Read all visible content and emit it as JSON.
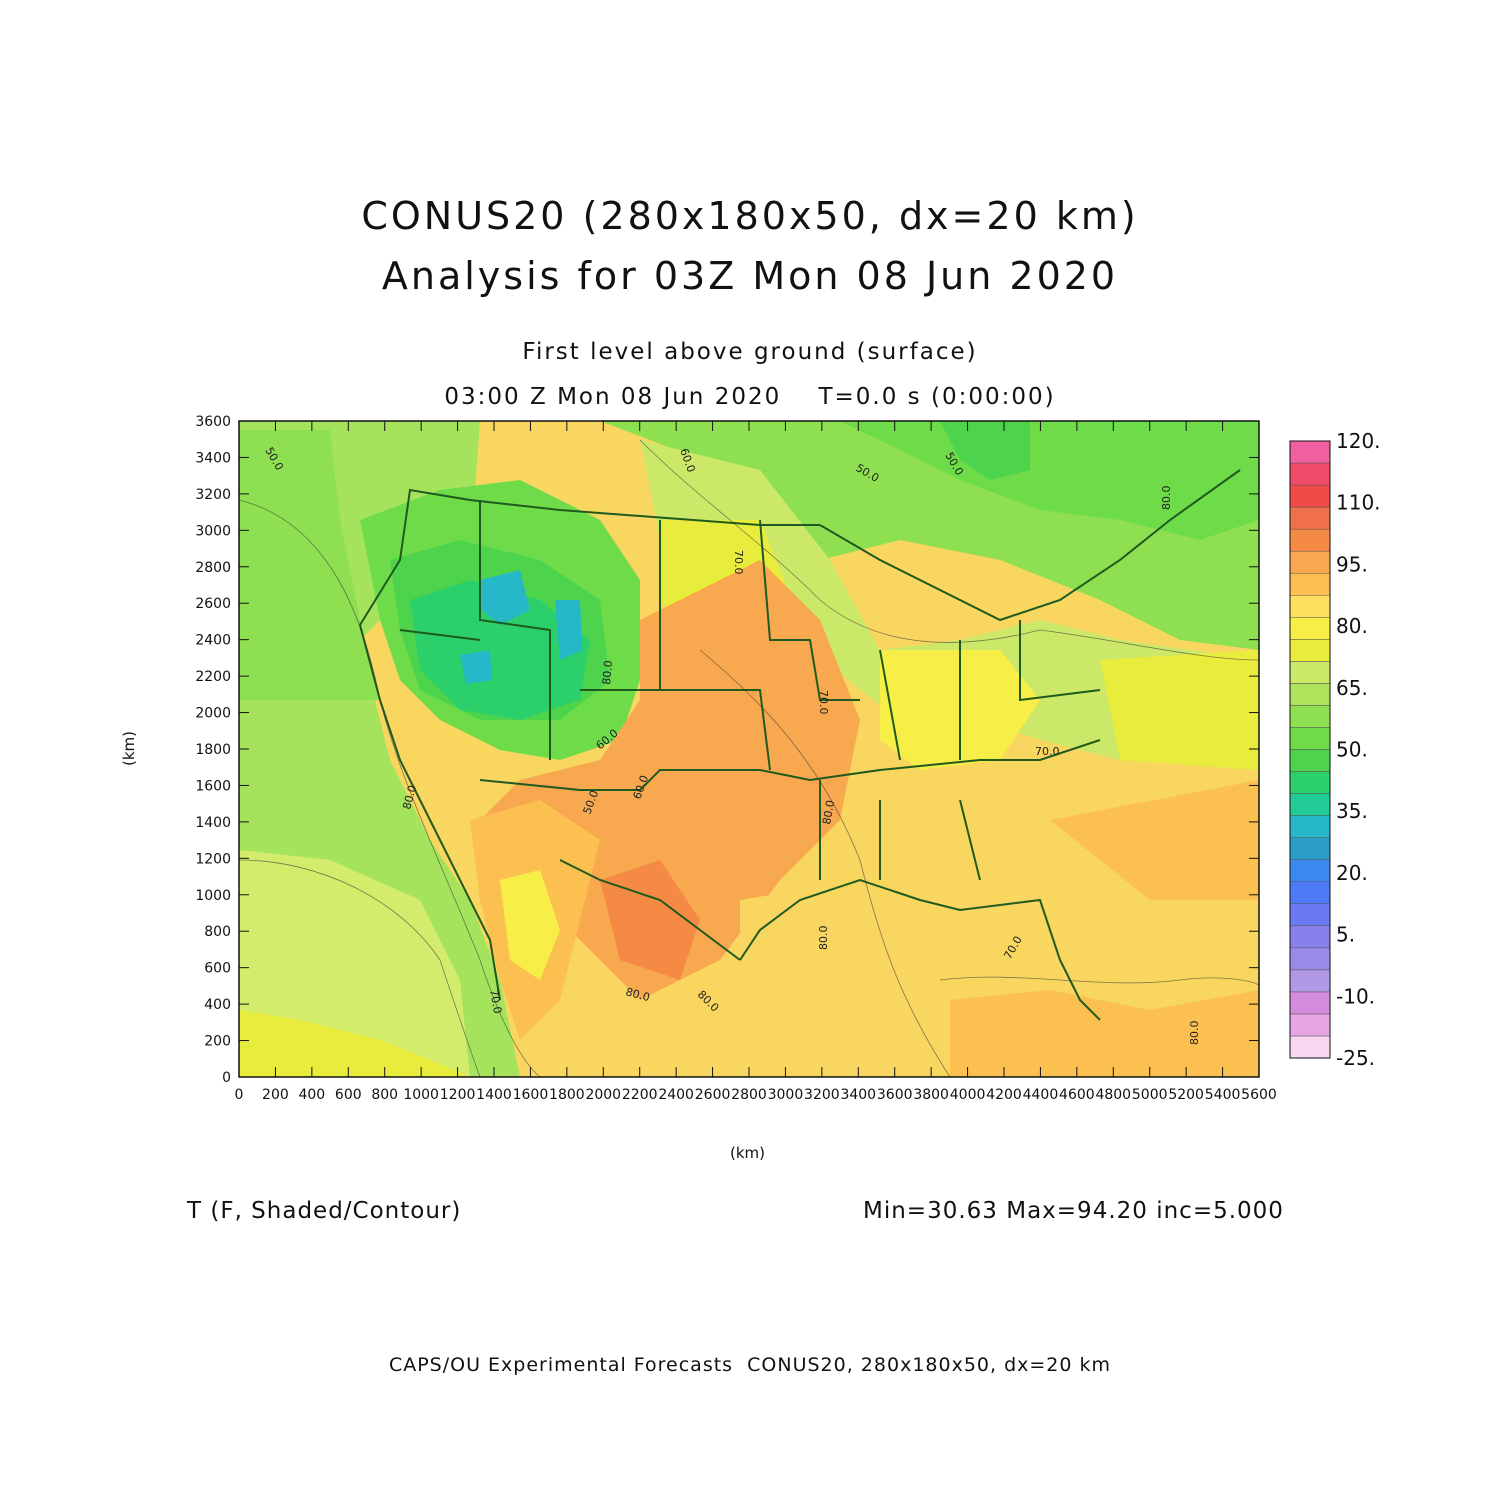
{
  "title": {
    "line1": "CONUS20 (280x180x50, dx=20 km)",
    "line2": "Analysis for 03Z Mon 08 Jun 2020"
  },
  "subtitle": {
    "level": "First level above ground (surface)",
    "time": "03:00 Z Mon 08 Jun 2020    T=0.0 s (0:00:00)"
  },
  "axes": {
    "xlabel": "(km)",
    "ylabel": "(km)",
    "x_ticks": [
      "0",
      "200",
      "400",
      "600",
      "800",
      "1000",
      "1200",
      "1400",
      "1600",
      "1800",
      "2000",
      "2200",
      "2400",
      "2600",
      "2800",
      "3000",
      "3200",
      "3400",
      "3600",
      "3800",
      "4000",
      "4200",
      "4400",
      "4600",
      "4800",
      "5000",
      "5200",
      "5400",
      "5600"
    ],
    "y_ticks": [
      "0",
      "200",
      "400",
      "600",
      "800",
      "1000",
      "1200",
      "1400",
      "1600",
      "1800",
      "2000",
      "2200",
      "2400",
      "2600",
      "2800",
      "3000",
      "3200",
      "3400",
      "3600"
    ],
    "xlim": [
      0,
      5600
    ],
    "ylim": [
      0,
      3600
    ]
  },
  "field": {
    "variable": "T (F, Shaded/Contour)",
    "stats": "Min=30.63 Max=94.20 inc=5.000",
    "contour_labels": [
      "50.0",
      "60.0",
      "50.0",
      "50.0",
      "70.0",
      "60.0",
      "50.0",
      "70.0",
      "80.0",
      "80.0",
      "70.0",
      "80.0",
      "70.0",
      "80.0",
      "80.0",
      "80.0",
      "80.0",
      "70.0",
      "60.0",
      "80.0"
    ]
  },
  "colorbar": {
    "labels": [
      "120.",
      "110.",
      "95.",
      "80.",
      "65.",
      "50.",
      "35.",
      "20.",
      "5.",
      "-10.",
      "-25."
    ],
    "colors": [
      "#f7d6f0",
      "#e6a6e6",
      "#d48cdc",
      "#b299e6",
      "#9a8ae8",
      "#8a80ec",
      "#6b7af0",
      "#4f7af5",
      "#3a88f0",
      "#2a9ec8",
      "#26b7c8",
      "#22cc99",
      "#2cd06a",
      "#4ed44c",
      "#6ddc48",
      "#8ee050",
      "#aee45c",
      "#cce868",
      "#e8ec3c",
      "#f8ee48",
      "#fde060",
      "#fbc050",
      "#f8a84e",
      "#f48a44",
      "#f0704c",
      "#ef4a48",
      "#f04a6a",
      "#f060a0"
    ]
  },
  "footer": "CAPS/OU Experimental Forecasts  CONUS20, 280x180x50, dx=20 km"
}
